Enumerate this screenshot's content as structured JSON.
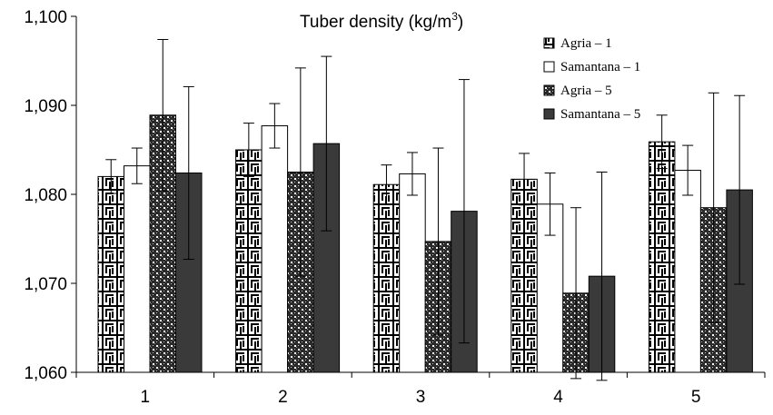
{
  "chart_data": {
    "type": "bar",
    "title_main": "Tuber density (kg/m",
    "title_sup": "3",
    "title_close": ")",
    "categories": [
      "1",
      "2",
      "3",
      "4",
      "5"
    ],
    "ylim": [
      1060,
      1100
    ],
    "yticks": [
      {
        "value": 1060,
        "label": "1,060"
      },
      {
        "value": 1070,
        "label": "1,070"
      },
      {
        "value": 1080,
        "label": "1,080"
      },
      {
        "value": 1090,
        "label": "1,090"
      },
      {
        "value": 1100,
        "label": "1,100"
      }
    ],
    "grid": false,
    "legend_position": "top-right",
    "series": [
      {
        "name": "Agria – 1",
        "pattern": "maze",
        "values": [
          1082.0,
          1085.0,
          1081.1,
          1081.7,
          1085.9
        ],
        "errors": [
          1.9,
          3.0,
          2.2,
          2.9,
          3.0
        ]
      },
      {
        "name": "Samantana – 1",
        "pattern": "white",
        "values": [
          1083.2,
          1087.7,
          1082.3,
          1078.9,
          1082.7
        ],
        "errors": [
          2.0,
          2.5,
          2.4,
          3.5,
          2.8
        ]
      },
      {
        "name": "Agria – 5",
        "pattern": "checker",
        "values": [
          1088.9,
          1082.5,
          1074.7,
          1068.9,
          1078.5
        ],
        "errors": [
          8.5,
          11.7,
          10.5,
          9.6,
          12.9
        ]
      },
      {
        "name": "Samantana – 5",
        "pattern": "dark",
        "values": [
          1082.4,
          1085.7,
          1078.1,
          1070.8,
          1080.5
        ],
        "errors": [
          9.7,
          9.8,
          14.8,
          11.7,
          10.6
        ]
      }
    ]
  },
  "colors": {
    "dark_bar": "#3a3a3a",
    "axis": "#000000",
    "background": "#ffffff"
  }
}
